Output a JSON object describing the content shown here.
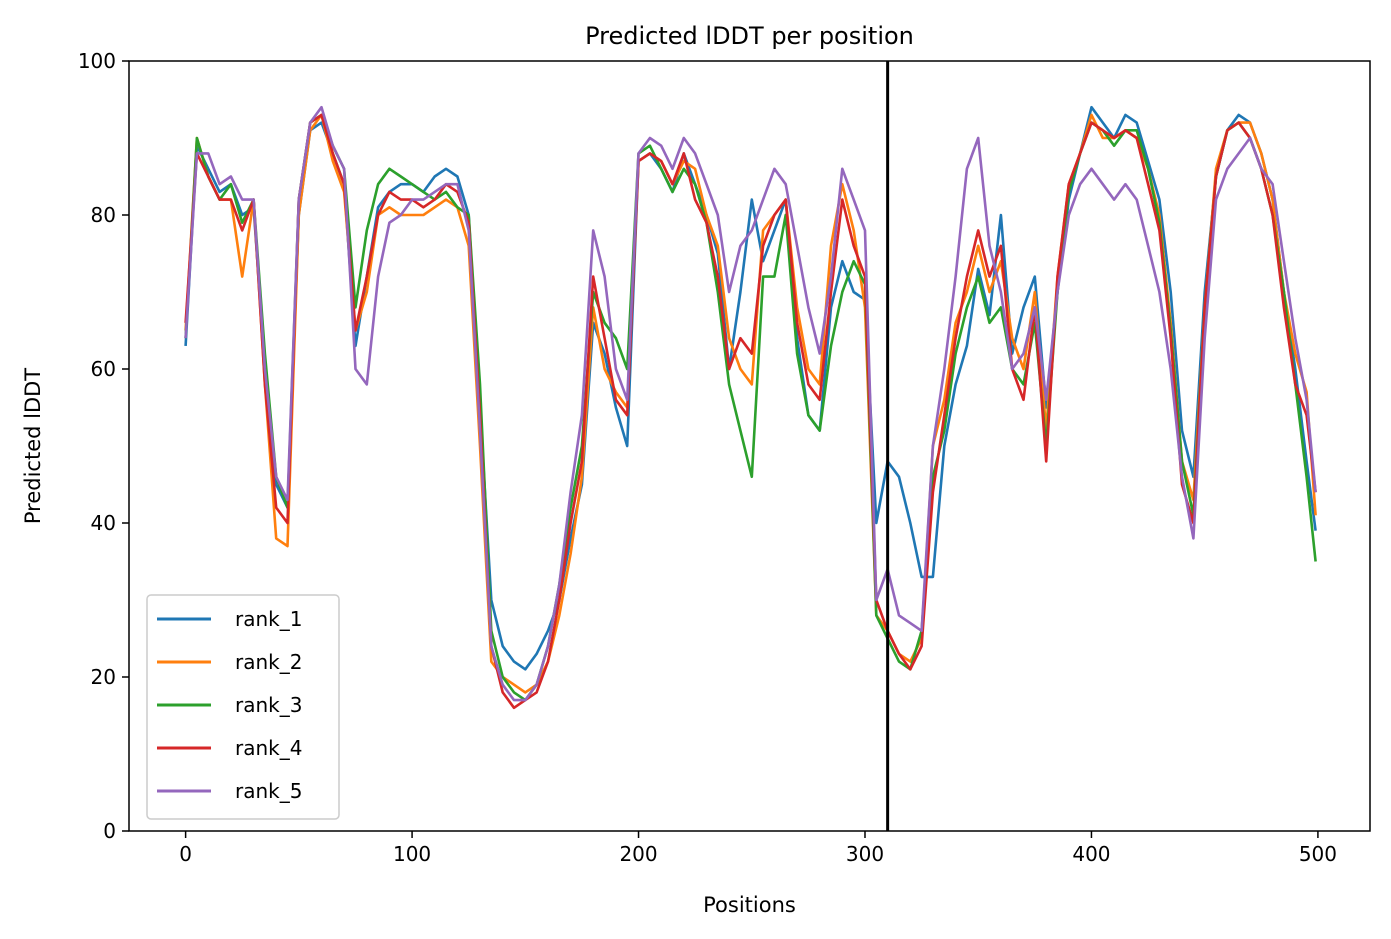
{
  "chart_data": {
    "type": "line",
    "title": "Predicted lDDT per position",
    "xlabel": "Positions",
    "ylabel": "Predicted lDDT",
    "xlim": [
      -25,
      523
    ],
    "ylim": [
      0,
      100
    ],
    "xticks": [
      0,
      100,
      200,
      300,
      400,
      500
    ],
    "yticks": [
      0,
      20,
      40,
      60,
      80,
      100
    ],
    "grid": false,
    "legend_position": "lower-left",
    "vertical_line": {
      "x": 310,
      "color": "#000000"
    },
    "x": [
      0,
      5,
      10,
      15,
      20,
      25,
      30,
      35,
      40,
      45,
      50,
      55,
      60,
      65,
      70,
      75,
      80,
      85,
      90,
      95,
      100,
      105,
      110,
      115,
      120,
      125,
      130,
      135,
      140,
      145,
      150,
      155,
      160,
      165,
      170,
      175,
      180,
      185,
      190,
      195,
      200,
      205,
      210,
      215,
      220,
      225,
      230,
      235,
      240,
      245,
      250,
      255,
      260,
      265,
      270,
      275,
      280,
      285,
      290,
      295,
      300,
      305,
      310,
      315,
      320,
      325,
      330,
      335,
      340,
      345,
      350,
      355,
      360,
      365,
      370,
      375,
      380,
      385,
      390,
      395,
      400,
      405,
      410,
      415,
      420,
      425,
      430,
      435,
      440,
      445,
      450,
      455,
      460,
      465,
      470,
      475,
      480,
      485,
      490,
      495,
      499
    ],
    "series": [
      {
        "name": "rank_1",
        "color": "#1f77b4",
        "values": [
          63,
          89,
          86,
          83,
          84,
          80,
          81,
          60,
          45,
          42,
          80,
          91,
          92,
          88,
          84,
          63,
          72,
          81,
          83,
          84,
          84,
          83,
          85,
          86,
          85,
          80,
          55,
          30,
          24,
          22,
          21,
          23,
          26,
          30,
          38,
          45,
          66,
          62,
          55,
          50,
          87,
          88,
          86,
          83,
          88,
          84,
          80,
          75,
          60,
          70,
          82,
          74,
          78,
          82,
          64,
          54,
          52,
          68,
          74,
          70,
          69,
          40,
          48,
          46,
          40,
          33,
          33,
          50,
          58,
          63,
          73,
          67,
          80,
          62,
          68,
          72,
          55,
          70,
          82,
          88,
          94,
          92,
          90,
          93,
          92,
          87,
          82,
          70,
          52,
          46,
          70,
          85,
          91,
          93,
          92,
          88,
          82,
          70,
          60,
          48,
          39
        ]
      },
      {
        "name": "rank_2",
        "color": "#ff7f0e",
        "values": [
          65,
          90,
          85,
          82,
          82,
          72,
          82,
          58,
          38,
          37,
          80,
          91,
          93,
          87,
          83,
          65,
          70,
          80,
          81,
          80,
          80,
          80,
          81,
          82,
          81,
          76,
          50,
          22,
          20,
          19,
          18,
          19,
          22,
          28,
          36,
          46,
          68,
          60,
          57,
          55,
          87,
          88,
          87,
          84,
          87,
          86,
          80,
          76,
          64,
          60,
          58,
          78,
          80,
          82,
          68,
          60,
          58,
          76,
          84,
          78,
          68,
          28,
          26,
          23,
          22,
          25,
          50,
          56,
          66,
          70,
          76,
          70,
          74,
          64,
          60,
          70,
          52,
          72,
          84,
          88,
          93,
          90,
          90,
          91,
          90,
          86,
          80,
          66,
          48,
          43,
          68,
          86,
          91,
          92,
          92,
          88,
          82,
          70,
          62,
          57,
          41
        ]
      },
      {
        "name": "rank_3",
        "color": "#2ca02c",
        "values": [
          64,
          90,
          85,
          82,
          84,
          79,
          82,
          62,
          46,
          42,
          82,
          92,
          93,
          89,
          86,
          68,
          78,
          84,
          86,
          85,
          84,
          83,
          82,
          83,
          81,
          80,
          58,
          26,
          20,
          18,
          17,
          19,
          24,
          32,
          42,
          50,
          70,
          66,
          64,
          60,
          88,
          89,
          86,
          83,
          86,
          84,
          79,
          70,
          58,
          52,
          46,
          72,
          72,
          80,
          62,
          54,
          52,
          63,
          70,
          74,
          71,
          28,
          25,
          22,
          21,
          26,
          46,
          52,
          62,
          68,
          72,
          66,
          68,
          60,
          58,
          66,
          50,
          70,
          83,
          88,
          92,
          91,
          89,
          91,
          91,
          86,
          79,
          65,
          48,
          41,
          68,
          85,
          91,
          92,
          90,
          86,
          80,
          70,
          58,
          46,
          35
        ]
      },
      {
        "name": "rank_4",
        "color": "#d62728",
        "values": [
          66,
          88,
          85,
          82,
          82,
          78,
          82,
          58,
          42,
          40,
          82,
          92,
          93,
          88,
          84,
          65,
          72,
          80,
          83,
          82,
          82,
          81,
          82,
          84,
          83,
          79,
          54,
          24,
          18,
          16,
          17,
          18,
          22,
          30,
          40,
          48,
          72,
          64,
          56,
          54,
          87,
          88,
          87,
          84,
          88,
          82,
          79,
          72,
          60,
          64,
          62,
          76,
          80,
          82,
          66,
          58,
          56,
          70,
          82,
          76,
          72,
          30,
          26,
          23,
          21,
          24,
          44,
          54,
          64,
          72,
          78,
          72,
          76,
          60,
          56,
          68,
          48,
          72,
          84,
          88,
          92,
          91,
          90,
          91,
          90,
          84,
          78,
          64,
          45,
          40,
          68,
          85,
          91,
          92,
          90,
          86,
          80,
          68,
          58,
          54,
          44
        ]
      },
      {
        "name": "rank_5",
        "color": "#9467bd",
        "values": [
          64,
          88,
          88,
          84,
          85,
          82,
          82,
          60,
          46,
          43,
          82,
          92,
          94,
          89,
          86,
          60,
          58,
          72,
          79,
          80,
          82,
          82,
          83,
          84,
          84,
          78,
          52,
          24,
          19,
          17,
          17,
          19,
          24,
          32,
          44,
          54,
          78,
          72,
          60,
          56,
          88,
          90,
          89,
          86,
          90,
          88,
          84,
          80,
          70,
          76,
          78,
          82,
          86,
          84,
          76,
          68,
          62,
          72,
          86,
          82,
          78,
          30,
          34,
          28,
          27,
          26,
          50,
          60,
          72,
          86,
          90,
          76,
          70,
          60,
          62,
          68,
          56,
          70,
          80,
          84,
          86,
          84,
          82,
          84,
          82,
          76,
          70,
          60,
          46,
          38,
          64,
          82,
          86,
          88,
          90,
          86,
          84,
          74,
          64,
          56,
          44
        ]
      }
    ]
  }
}
